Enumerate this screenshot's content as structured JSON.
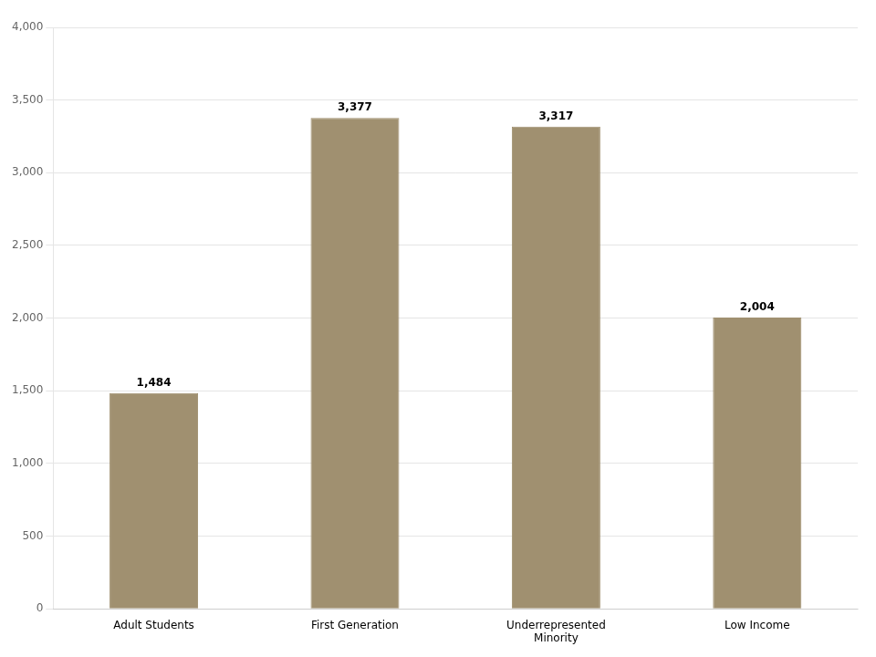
{
  "chart_data": {
    "type": "bar",
    "categories": [
      "Adult Students",
      "First Generation",
      "Underrepresented\nMinority",
      "Low Income"
    ],
    "values": [
      1484,
      3377,
      3317,
      2004
    ],
    "value_labels": [
      "1,484",
      "3,377",
      "3,317",
      "2,004"
    ],
    "data_labels": true,
    "color": "#a09070",
    "ylim": [
      0,
      4000
    ],
    "yticks": [
      0,
      500,
      {
        "value": 1000,
        "label": "1,000"
      },
      {
        "value": 1500,
        "label": "1,500"
      },
      {
        "value": 2000,
        "label": "2,000"
      },
      {
        "value": 2500,
        "label": "2,500"
      },
      {
        "value": 3000,
        "label": "3,000"
      },
      {
        "value": 3500,
        "label": "3,500"
      },
      {
        "value": 4000,
        "label": "4,000"
      }
    ],
    "grid": true
  }
}
